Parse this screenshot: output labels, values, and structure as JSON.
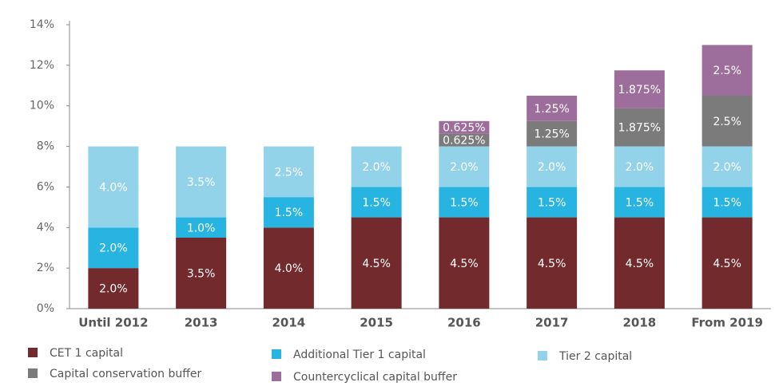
{
  "chart_data": {
    "type": "stacked_bar",
    "categories": [
      "Until 2012",
      "2013",
      "2014",
      "2015",
      "2016",
      "2017",
      "2018",
      "From 2019"
    ],
    "series": [
      {
        "name": "CET 1 capital",
        "color": "#722a2d",
        "values": [
          2.0,
          3.5,
          4.0,
          4.5,
          4.5,
          4.5,
          4.5,
          4.5
        ],
        "value_labels": [
          "2.0%",
          "3.5%",
          "4.0%",
          "4.5%",
          "4.5%",
          "4.5%",
          "4.5%",
          "4.5%"
        ]
      },
      {
        "name": "Additional Tier 1 capital",
        "color": "#27b4e1",
        "values": [
          2.0,
          1.0,
          1.5,
          1.5,
          1.5,
          1.5,
          1.5,
          1.5
        ],
        "value_labels": [
          "2.0%",
          "1.0%",
          "1.5%",
          "1.5%",
          "1.5%",
          "1.5%",
          "1.5%",
          "1.5%"
        ]
      },
      {
        "name": "Tier 2 capital",
        "color": "#92d3ea",
        "values": [
          4.0,
          3.5,
          2.5,
          2.0,
          2.0,
          2.0,
          2.0,
          2.0
        ],
        "value_labels": [
          "4.0%",
          "3.5%",
          "2.5%",
          "2.0%",
          "2.0%",
          "2.0%",
          "2.0%",
          "2.0%"
        ]
      },
      {
        "name": "Capital conservation buffer",
        "color": "#7b7b7b",
        "values": [
          null,
          null,
          null,
          null,
          0.625,
          1.25,
          1.875,
          2.5
        ],
        "value_labels": [
          null,
          null,
          null,
          null,
          "0.625%",
          "1.25%",
          "1.875%",
          "2.5%"
        ]
      },
      {
        "name": "Countercyclical capital buffer",
        "color": "#9d6e9b",
        "values": [
          null,
          null,
          null,
          null,
          0.625,
          1.25,
          1.875,
          2.5
        ],
        "value_labels": [
          null,
          null,
          null,
          null,
          "0.625%",
          "1.25%",
          "1.875%",
          "2.5%"
        ]
      }
    ],
    "ylim": [
      0,
      14
    ],
    "yticks": [
      {
        "value": 0,
        "label": "0%"
      },
      {
        "value": 2,
        "label": "2%"
      },
      {
        "value": 4,
        "label": "4%"
      },
      {
        "value": 6,
        "label": "6%"
      },
      {
        "value": 8,
        "label": "8%"
      },
      {
        "value": 10,
        "label": "10%"
      },
      {
        "value": 12,
        "label": "12%"
      },
      {
        "value": 14,
        "label": "14%"
      }
    ],
    "grid": false,
    "legend": "bottom"
  }
}
